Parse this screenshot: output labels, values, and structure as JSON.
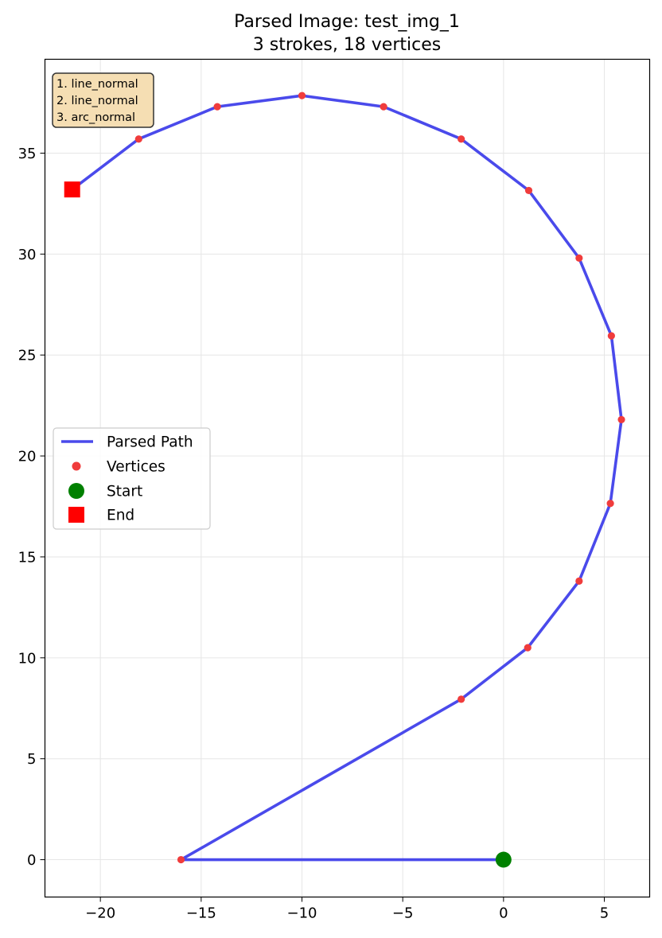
{
  "chart_data": {
    "type": "line",
    "title": "Parsed Image: test_img_1",
    "subtitle": "3 strokes, 18 vertices",
    "xlabel": "",
    "ylabel": "",
    "xlim": [
      -22.75,
      7.25
    ],
    "ylim": [
      -1.85,
      39.65
    ],
    "xticks": [
      -20,
      -15,
      -10,
      -5,
      0,
      5
    ],
    "yticks": [
      0,
      5,
      10,
      15,
      20,
      25,
      30,
      35
    ],
    "grid": true,
    "legend_placement": "center-left",
    "annotation": {
      "lines": [
        "1. line_normal",
        "2. line_normal",
        "3. arc_normal"
      ],
      "placement": "top-left",
      "background": "#f5deb3"
    },
    "colors": {
      "path": "#4a4aeb",
      "vertices": "#f03c3c",
      "start": "#008000",
      "end": "#ff0000",
      "grid": "#e6e6e6",
      "axes": "#000000"
    },
    "series": [
      {
        "name": "Parsed Path",
        "points": [
          [
            0,
            0
          ],
          [
            -16,
            0
          ],
          [
            -2.1,
            7.95
          ],
          [
            1.2,
            10.5
          ],
          [
            3.75,
            13.8
          ],
          [
            5.3,
            17.65
          ],
          [
            5.85,
            21.8
          ],
          [
            5.35,
            25.95
          ],
          [
            3.75,
            29.8
          ],
          [
            1.25,
            33.15
          ],
          [
            -2.1,
            35.7
          ],
          [
            -5.95,
            37.3
          ],
          [
            -10,
            37.85
          ],
          [
            -14.2,
            37.3
          ],
          [
            -18.1,
            35.7
          ],
          [
            -21.4,
            33.2
          ]
        ]
      },
      {
        "name": "Vertices",
        "points": [
          [
            -16,
            0
          ],
          [
            -2.1,
            7.95
          ],
          [
            1.2,
            10.5
          ],
          [
            3.75,
            13.8
          ],
          [
            5.3,
            17.65
          ],
          [
            5.85,
            21.8
          ],
          [
            5.35,
            25.95
          ],
          [
            3.75,
            29.8
          ],
          [
            1.25,
            33.15
          ],
          [
            -2.1,
            35.7
          ],
          [
            -5.95,
            37.3
          ],
          [
            -10,
            37.85
          ],
          [
            -14.2,
            37.3
          ],
          [
            -18.1,
            35.7
          ]
        ]
      },
      {
        "name": "Start",
        "points": [
          [
            0,
            0
          ]
        ]
      },
      {
        "name": "End",
        "points": [
          [
            -21.4,
            33.2
          ]
        ]
      }
    ],
    "legend": [
      "Parsed Path",
      "Vertices",
      "Start",
      "End"
    ]
  }
}
